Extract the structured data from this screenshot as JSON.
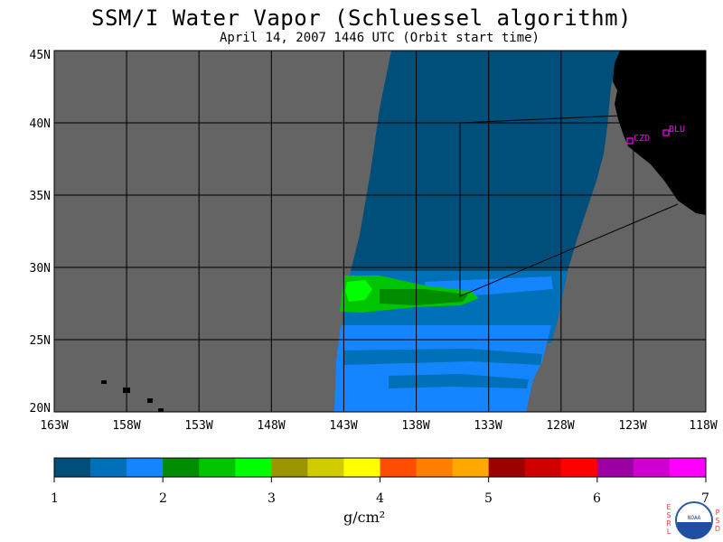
{
  "title": "SSM/I Water Vapor (Schluessel algorithm)",
  "subtitle": "April 14, 2007  1446 UTC  (Orbit start time)",
  "map": {
    "lat_labels": [
      "45N",
      "40N",
      "35N",
      "30N",
      "25N",
      "20N"
    ],
    "lon_labels": [
      "163W",
      "158W",
      "153W",
      "148W",
      "143W",
      "138W",
      "133W",
      "128W",
      "123W",
      "118W"
    ],
    "stations": [
      {
        "id": "CZD",
        "label": "CZD"
      },
      {
        "id": "BLU",
        "label": "BLU"
      }
    ],
    "colors": {
      "no_data": "#646464",
      "land": "#000000",
      "station": "#ff00ff",
      "grid": "#000000"
    }
  },
  "colorbar": {
    "colors": [
      "#004f7a",
      "#0070b8",
      "#1485ff",
      "#008c00",
      "#00c400",
      "#00ff00",
      "#9c9400",
      "#d0cc00",
      "#ffff00",
      "#ff4d00",
      "#ff7e00",
      "#ffa800",
      "#9c0000",
      "#d00000",
      "#ff0000",
      "#9c00a4",
      "#d000d0",
      "#ff00ff"
    ],
    "tick_labels": [
      "1",
      "2",
      "3",
      "4",
      "5",
      "6",
      "7"
    ],
    "units": "g/cm²"
  },
  "logo": {
    "left_letters": [
      "E",
      "S",
      "R",
      "L"
    ],
    "right_letters": [
      "P",
      "S",
      "D"
    ],
    "emblem": "NOAA"
  }
}
